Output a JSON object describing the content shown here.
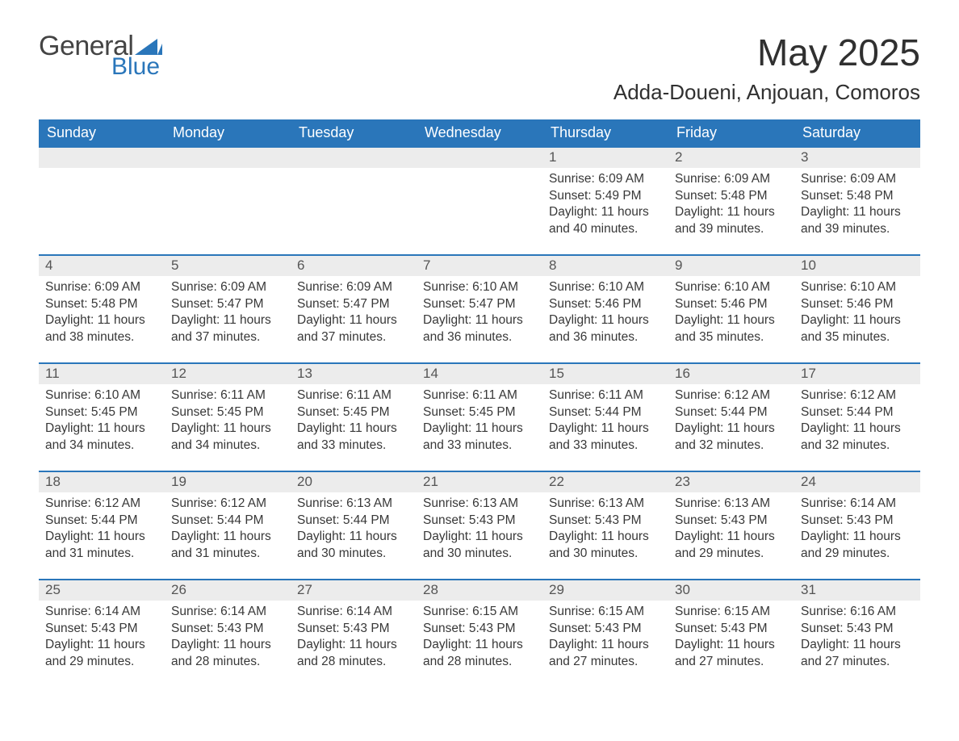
{
  "logo": {
    "general": "General",
    "blue": "Blue"
  },
  "title": "May 2025",
  "location": "Adda-Doueni, Anjouan, Comoros",
  "colors": {
    "header_bg": "#2a76ba",
    "rule": "#2a76ba",
    "day_number_bg": "#ececec",
    "text": "#333333",
    "logo_blue": "#2a76ba",
    "logo_gray": "#444444",
    "background": "#ffffff"
  },
  "weekdays": [
    "Sunday",
    "Monday",
    "Tuesday",
    "Wednesday",
    "Thursday",
    "Friday",
    "Saturday"
  ],
  "labels": {
    "sunrise": "Sunrise:",
    "sunset": "Sunset:",
    "daylight_prefix": "Daylight:",
    "daylight_suffix": "."
  },
  "weeks": [
    [
      {
        "blank": true
      },
      {
        "blank": true
      },
      {
        "blank": true
      },
      {
        "blank": true
      },
      {
        "n": "1",
        "sunrise": "6:09 AM",
        "sunset": "5:49 PM",
        "daylight": "11 hours and 40 minutes"
      },
      {
        "n": "2",
        "sunrise": "6:09 AM",
        "sunset": "5:48 PM",
        "daylight": "11 hours and 39 minutes"
      },
      {
        "n": "3",
        "sunrise": "6:09 AM",
        "sunset": "5:48 PM",
        "daylight": "11 hours and 39 minutes"
      }
    ],
    [
      {
        "n": "4",
        "sunrise": "6:09 AM",
        "sunset": "5:48 PM",
        "daylight": "11 hours and 38 minutes"
      },
      {
        "n": "5",
        "sunrise": "6:09 AM",
        "sunset": "5:47 PM",
        "daylight": "11 hours and 37 minutes"
      },
      {
        "n": "6",
        "sunrise": "6:09 AM",
        "sunset": "5:47 PM",
        "daylight": "11 hours and 37 minutes"
      },
      {
        "n": "7",
        "sunrise": "6:10 AM",
        "sunset": "5:47 PM",
        "daylight": "11 hours and 36 minutes"
      },
      {
        "n": "8",
        "sunrise": "6:10 AM",
        "sunset": "5:46 PM",
        "daylight": "11 hours and 36 minutes"
      },
      {
        "n": "9",
        "sunrise": "6:10 AM",
        "sunset": "5:46 PM",
        "daylight": "11 hours and 35 minutes"
      },
      {
        "n": "10",
        "sunrise": "6:10 AM",
        "sunset": "5:46 PM",
        "daylight": "11 hours and 35 minutes"
      }
    ],
    [
      {
        "n": "11",
        "sunrise": "6:10 AM",
        "sunset": "5:45 PM",
        "daylight": "11 hours and 34 minutes"
      },
      {
        "n": "12",
        "sunrise": "6:11 AM",
        "sunset": "5:45 PM",
        "daylight": "11 hours and 34 minutes"
      },
      {
        "n": "13",
        "sunrise": "6:11 AM",
        "sunset": "5:45 PM",
        "daylight": "11 hours and 33 minutes"
      },
      {
        "n": "14",
        "sunrise": "6:11 AM",
        "sunset": "5:45 PM",
        "daylight": "11 hours and 33 minutes"
      },
      {
        "n": "15",
        "sunrise": "6:11 AM",
        "sunset": "5:44 PM",
        "daylight": "11 hours and 33 minutes"
      },
      {
        "n": "16",
        "sunrise": "6:12 AM",
        "sunset": "5:44 PM",
        "daylight": "11 hours and 32 minutes"
      },
      {
        "n": "17",
        "sunrise": "6:12 AM",
        "sunset": "5:44 PM",
        "daylight": "11 hours and 32 minutes"
      }
    ],
    [
      {
        "n": "18",
        "sunrise": "6:12 AM",
        "sunset": "5:44 PM",
        "daylight": "11 hours and 31 minutes"
      },
      {
        "n": "19",
        "sunrise": "6:12 AM",
        "sunset": "5:44 PM",
        "daylight": "11 hours and 31 minutes"
      },
      {
        "n": "20",
        "sunrise": "6:13 AM",
        "sunset": "5:44 PM",
        "daylight": "11 hours and 30 minutes"
      },
      {
        "n": "21",
        "sunrise": "6:13 AM",
        "sunset": "5:43 PM",
        "daylight": "11 hours and 30 minutes"
      },
      {
        "n": "22",
        "sunrise": "6:13 AM",
        "sunset": "5:43 PM",
        "daylight": "11 hours and 30 minutes"
      },
      {
        "n": "23",
        "sunrise": "6:13 AM",
        "sunset": "5:43 PM",
        "daylight": "11 hours and 29 minutes"
      },
      {
        "n": "24",
        "sunrise": "6:14 AM",
        "sunset": "5:43 PM",
        "daylight": "11 hours and 29 minutes"
      }
    ],
    [
      {
        "n": "25",
        "sunrise": "6:14 AM",
        "sunset": "5:43 PM",
        "daylight": "11 hours and 29 minutes"
      },
      {
        "n": "26",
        "sunrise": "6:14 AM",
        "sunset": "5:43 PM",
        "daylight": "11 hours and 28 minutes"
      },
      {
        "n": "27",
        "sunrise": "6:14 AM",
        "sunset": "5:43 PM",
        "daylight": "11 hours and 28 minutes"
      },
      {
        "n": "28",
        "sunrise": "6:15 AM",
        "sunset": "5:43 PM",
        "daylight": "11 hours and 28 minutes"
      },
      {
        "n": "29",
        "sunrise": "6:15 AM",
        "sunset": "5:43 PM",
        "daylight": "11 hours and 27 minutes"
      },
      {
        "n": "30",
        "sunrise": "6:15 AM",
        "sunset": "5:43 PM",
        "daylight": "11 hours and 27 minutes"
      },
      {
        "n": "31",
        "sunrise": "6:16 AM",
        "sunset": "5:43 PM",
        "daylight": "11 hours and 27 minutes"
      }
    ]
  ]
}
